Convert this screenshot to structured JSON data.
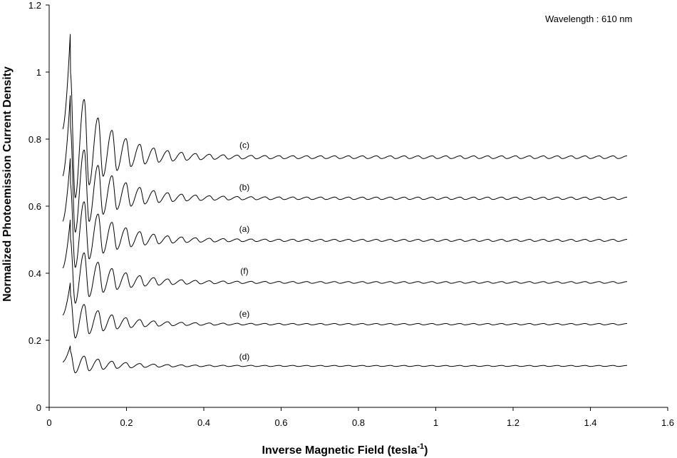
{
  "chart_data": {
    "type": "line",
    "title": "",
    "xlabel": "Inverse Magnetic Field (tesla",
    "xlabel_superscript": "-1",
    "xlabel_suffix": ")",
    "ylabel": "Normalized Photoemission Current Density",
    "xlim": [
      0,
      1.6
    ],
    "ylim": [
      0,
      1.2
    ],
    "xticks": [
      "0",
      "0.2",
      "0.4",
      "0.6",
      "0.8",
      "1",
      "1.2",
      "1.4",
      "1.6"
    ],
    "yticks": [
      "0",
      "0.2",
      "0.4",
      "0.6",
      "0.8",
      "1",
      "1.2"
    ],
    "annotation": "Wavelength :  610 nm",
    "grid": false,
    "legend": "none",
    "x_range_of_curves": [
      0.035,
      1.495
    ],
    "oscillation_period": 0.036,
    "series": [
      {
        "name": "(d)",
        "baseline": 0.122,
        "start_value": 0.135,
        "peak_x": 0.055,
        "peak_value": 0.185,
        "tail_amplitude": 0.003,
        "label_x": 0.505,
        "label_y": 0.143
      },
      {
        "name": "(e)",
        "baseline": 0.246,
        "start_value": 0.275,
        "peak_x": 0.055,
        "peak_value": 0.375,
        "tail_amplitude": 0.004,
        "label_x": 0.505,
        "label_y": 0.27
      },
      {
        "name": "(f)",
        "baseline": 0.37,
        "start_value": 0.415,
        "peak_x": 0.055,
        "peak_value": 0.565,
        "tail_amplitude": 0.005,
        "label_x": 0.505,
        "label_y": 0.398
      },
      {
        "name": "(a)",
        "baseline": 0.495,
        "start_value": 0.555,
        "peak_x": 0.055,
        "peak_value": 0.75,
        "tail_amplitude": 0.006,
        "label_x": 0.505,
        "label_y": 0.523
      },
      {
        "name": "(b)",
        "baseline": 0.62,
        "start_value": 0.69,
        "peak_x": 0.055,
        "peak_value": 0.94,
        "tail_amplitude": 0.007,
        "label_x": 0.505,
        "label_y": 0.648
      },
      {
        "name": "(c)",
        "baseline": 0.742,
        "start_value": 0.83,
        "peak_x": 0.055,
        "peak_value": 1.125,
        "tail_amplitude": 0.008,
        "label_x": 0.505,
        "label_y": 0.773
      }
    ]
  }
}
